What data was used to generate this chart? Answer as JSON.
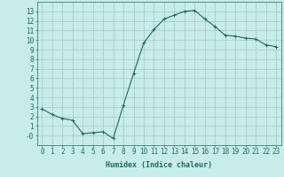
{
  "x": [
    0,
    1,
    2,
    3,
    4,
    5,
    6,
    7,
    8,
    9,
    10,
    11,
    12,
    13,
    14,
    15,
    16,
    17,
    18,
    19,
    20,
    21,
    22,
    23
  ],
  "y": [
    2.8,
    2.2,
    1.8,
    1.6,
    0.2,
    0.3,
    0.4,
    -0.3,
    3.2,
    6.5,
    9.7,
    11.1,
    12.2,
    12.6,
    13.0,
    13.1,
    12.2,
    11.4,
    10.5,
    10.4,
    10.2,
    10.1,
    9.5,
    9.3
  ],
  "line_color": "#1a6b5f",
  "marker": "+",
  "bg_color": "#c8ecec",
  "grid_color": "#a0c8c8",
  "xlabel": "Humidex (Indice chaleur)",
  "xlim": [
    -0.5,
    23.5
  ],
  "ylim": [
    -1.0,
    14.0
  ],
  "xticks": [
    0,
    1,
    2,
    3,
    4,
    5,
    6,
    7,
    8,
    9,
    10,
    11,
    12,
    13,
    14,
    15,
    16,
    17,
    18,
    19,
    20,
    21,
    22,
    23
  ],
  "yticks": [
    0,
    1,
    2,
    3,
    4,
    5,
    6,
    7,
    8,
    9,
    10,
    11,
    12,
    13
  ],
  "ytick_labels": [
    "-0",
    "1",
    "2",
    "3",
    "4",
    "5",
    "6",
    "7",
    "8",
    "9",
    "10",
    "11",
    "12",
    "13"
  ],
  "title_color": "#1a6b5f",
  "font_size_xlabel": 6,
  "font_size_ticks": 5.5
}
